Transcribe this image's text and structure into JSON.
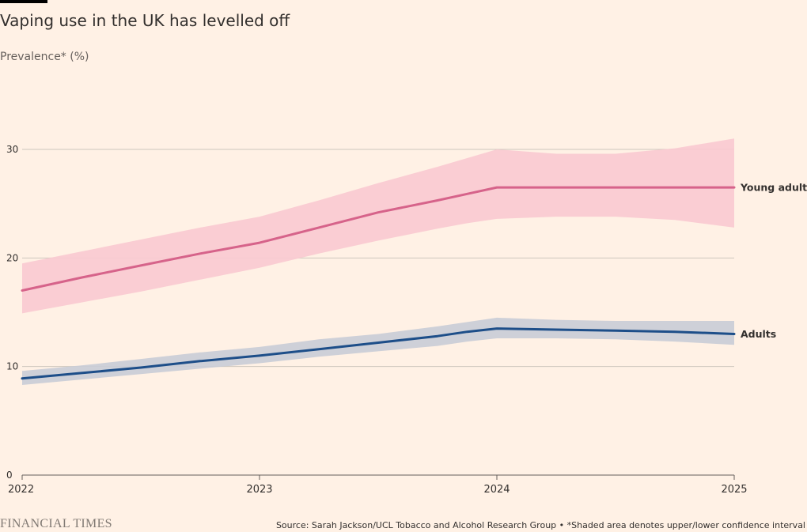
{
  "header": {
    "title": "Vaping use in the UK has levelled off",
    "subtitle": "Prevalence* (%)"
  },
  "footer": {
    "brand": "FINANCIAL TIMES",
    "source": "Source: Sarah Jackson/UCL Tobacco and Alcohol Research Group • *Shaded area denotes upper/lower confidence interval"
  },
  "colors": {
    "background": "#FFF1E5",
    "young_adults": "#D6638A",
    "young_adults_band": "#F9C9D0",
    "adults": "#1D4E89",
    "adults_band": "#C9CCD6",
    "grid": "#CEC6BD",
    "text": "#33302E"
  },
  "chart_data": {
    "type": "line",
    "x_axis": {
      "ticks": [
        2022,
        2023,
        2024,
        2025
      ],
      "range": [
        2022,
        2025
      ]
    },
    "y_axis": {
      "ticks": [
        0,
        10,
        20,
        30
      ],
      "range": [
        0,
        30
      ]
    },
    "grid": true,
    "legend": "direct labels at line ends",
    "series": [
      {
        "name": "Young adults",
        "x": [
          2022.0,
          2022.25,
          2022.5,
          2022.75,
          2023.0,
          2023.25,
          2023.5,
          2023.75,
          2023.875,
          2024.0,
          2024.25,
          2024.5,
          2024.75,
          2025.0
        ],
        "values": [
          17.0,
          18.2,
          19.3,
          20.4,
          21.4,
          22.8,
          24.2,
          25.3,
          25.9,
          26.5,
          26.5,
          26.5,
          26.5,
          26.5
        ],
        "upper": [
          19.5,
          20.6,
          21.7,
          22.8,
          23.8,
          25.3,
          26.9,
          28.4,
          29.2,
          30.0,
          29.6,
          29.6,
          30.1,
          31.0
        ],
        "lower": [
          14.9,
          15.9,
          16.9,
          18.0,
          19.1,
          20.4,
          21.6,
          22.7,
          23.2,
          23.6,
          23.8,
          23.8,
          23.5,
          22.8
        ]
      },
      {
        "name": "Adults",
        "x": [
          2022.0,
          2022.25,
          2022.5,
          2022.75,
          2023.0,
          2023.25,
          2023.5,
          2023.75,
          2023.875,
          2024.0,
          2024.25,
          2024.5,
          2024.75,
          2025.0
        ],
        "values": [
          8.9,
          9.4,
          9.9,
          10.5,
          11.0,
          11.6,
          12.2,
          12.8,
          13.2,
          13.5,
          13.4,
          13.3,
          13.2,
          13.0
        ],
        "upper": [
          9.6,
          10.1,
          10.7,
          11.3,
          11.8,
          12.5,
          13.0,
          13.7,
          14.1,
          14.5,
          14.3,
          14.2,
          14.2,
          14.2
        ],
        "lower": [
          8.3,
          8.8,
          9.3,
          9.8,
          10.3,
          10.9,
          11.4,
          11.9,
          12.3,
          12.6,
          12.6,
          12.5,
          12.3,
          12.0
        ]
      }
    ]
  }
}
